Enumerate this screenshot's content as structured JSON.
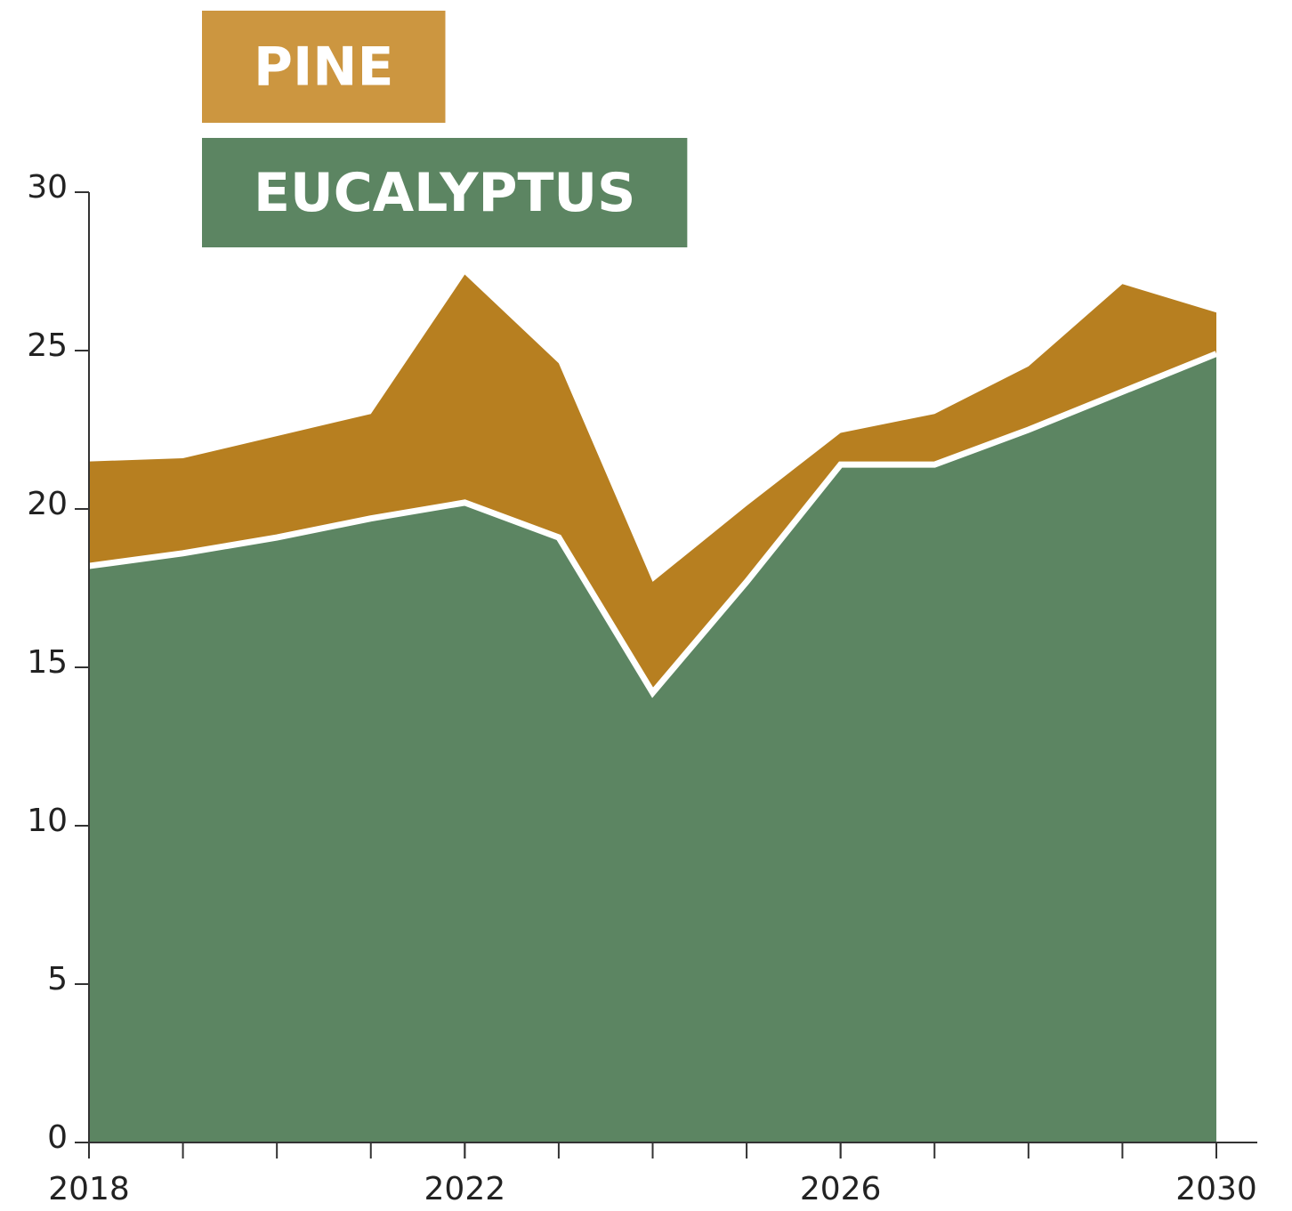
{
  "chart_data": {
    "type": "stacked_area",
    "x": [
      2018,
      2019,
      2020,
      2021,
      2022,
      2023,
      2024,
      2025,
      2026,
      2027,
      2028,
      2029,
      2030
    ],
    "series": [
      {
        "name": "EUCALYPTUS",
        "color": "#5c8562",
        "legend_color": "#5c8562",
        "values": [
          18.2,
          18.6,
          19.1,
          19.7,
          20.2,
          19.1,
          14.2,
          17.7,
          21.4,
          21.4,
          22.5,
          23.7,
          24.9
        ]
      },
      {
        "name": "PINE",
        "color": "#b77f20",
        "legend_color": "#cc9640",
        "values": [
          3.3,
          3.0,
          3.2,
          3.3,
          7.2,
          5.5,
          3.5,
          2.4,
          1.0,
          1.6,
          2.0,
          3.4,
          1.3
        ]
      }
    ],
    "xlim": [
      2018,
      2030
    ],
    "xticks": [
      2018,
      2022,
      2026,
      2030
    ],
    "ylim": [
      0,
      30
    ],
    "yticks": [
      0,
      5,
      10,
      15,
      20,
      25,
      30
    ]
  }
}
